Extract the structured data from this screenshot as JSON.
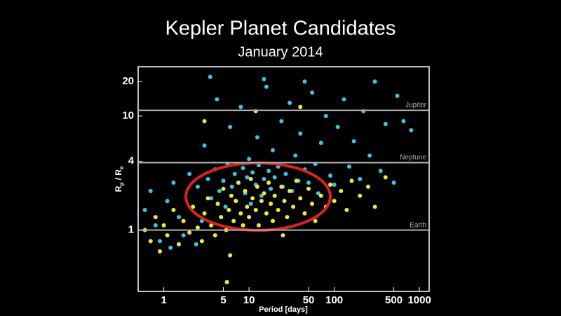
{
  "chart_data": {
    "type": "scatter",
    "title": "Kepler Planet Candidates",
    "subtitle": "January 2014",
    "xlabel": "Period [days]",
    "ylabel": [
      "R",
      "p",
      " / R",
      "e"
    ],
    "xscale": "log",
    "yscale": "log",
    "xlim": [
      0.5,
      1300
    ],
    "ylim": [
      0.29,
      27
    ],
    "xticks": [
      1,
      5,
      10,
      50,
      100,
      500,
      1000
    ],
    "yticks": [
      1,
      4,
      10,
      20
    ],
    "reference_lines": [
      {
        "value": 1,
        "label": "Earth"
      },
      {
        "value": 3.9,
        "label": "Neptune"
      },
      {
        "value": 11.2,
        "label": "Jupiter"
      }
    ],
    "series": [
      {
        "color": "#3cc3e6",
        "x": [
          0.6,
          0.7,
          0.8,
          0.9,
          1.1,
          1.3,
          1.5,
          1.7,
          2,
          2.2,
          2.5,
          2.8,
          3,
          3.3,
          3.6,
          4,
          4.2,
          4.5,
          5,
          5.3,
          5.6,
          6,
          6.3,
          6.8,
          7,
          7.5,
          8,
          8.5,
          9,
          9.5,
          10,
          10.5,
          11,
          12,
          12.5,
          13,
          14,
          15,
          16,
          17,
          18,
          19,
          20,
          22,
          24,
          25,
          27,
          30,
          32,
          35,
          38,
          40,
          45,
          50,
          55,
          60,
          65,
          70,
          80,
          90,
          100,
          110,
          130,
          150,
          170,
          200,
          220,
          260,
          300,
          350,
          400,
          500,
          550,
          650,
          800,
          3.5,
          15,
          45,
          1.2,
          2.4
        ],
        "values": [
          1.5,
          2.2,
          1.1,
          0.8,
          1.8,
          2.6,
          1.3,
          0.9,
          3.1,
          1.6,
          2.4,
          1.2,
          5.5,
          2.8,
          1.9,
          3.4,
          14,
          2.2,
          2.7,
          1.6,
          3.8,
          8,
          2.4,
          3.1,
          1.8,
          2.6,
          12,
          3.5,
          2.1,
          2.9,
          4.2,
          1.7,
          3.2,
          2.5,
          6.5,
          3.7,
          2.0,
          2.8,
          18,
          3.3,
          2.3,
          5,
          2.9,
          3.6,
          9,
          2.4,
          3.1,
          13,
          2.2,
          4.5,
          2.7,
          7,
          3.4,
          2.6,
          16,
          3.8,
          2.1,
          5.8,
          10,
          3.0,
          2.5,
          8,
          14,
          3.6,
          6,
          2.8,
          11,
          4.5,
          20,
          3.3,
          8.5,
          2.6,
          15,
          9,
          7.5,
          22,
          21,
          20,
          0.7,
          0.75
        ]
      },
      {
        "color": "#f2ea3a",
        "x": [
          0.6,
          0.7,
          0.8,
          0.9,
          1,
          1.1,
          1.3,
          1.5,
          1.7,
          2,
          2.2,
          2.5,
          2.8,
          3,
          3.3,
          3.6,
          4,
          4.3,
          4.7,
          5,
          5.4,
          5.8,
          6.2,
          6.6,
          7,
          7.5,
          8,
          8.5,
          9,
          9.5,
          10,
          10.5,
          11,
          12,
          12.5,
          13,
          14,
          15,
          16,
          17,
          18,
          19,
          20,
          22,
          24,
          26,
          28,
          30,
          33,
          36,
          40,
          45,
          50,
          55,
          60,
          70,
          80,
          90,
          100,
          120,
          140,
          160,
          200,
          250,
          300,
          400,
          3,
          12,
          40,
          6,
          25,
          5.5
        ],
        "values": [
          1.0,
          0.8,
          1.3,
          0.65,
          1.1,
          0.9,
          1.5,
          0.75,
          1.2,
          0.95,
          1.6,
          1.05,
          0.8,
          1.4,
          1.9,
          1.1,
          0.9,
          1.7,
          1.3,
          2.3,
          1.0,
          1.5,
          2.0,
          1.2,
          1.8,
          2.6,
          1.4,
          1.1,
          2.2,
          1.6,
          1.3,
          2.8,
          1.9,
          1.5,
          2.4,
          1.1,
          1.8,
          2.1,
          1.4,
          2.6,
          1.7,
          1.2,
          2.0,
          1.5,
          2.4,
          1.8,
          1.3,
          2.2,
          1.6,
          2.7,
          1.9,
          1.4,
          2.3,
          1.7,
          1.2,
          2.0,
          1.6,
          2.5,
          1.8,
          2.2,
          1.5,
          2.7,
          2.0,
          2.4,
          1.6,
          2.9,
          9,
          11,
          12,
          0.6,
          0.9,
          0.35
        ]
      }
    ]
  }
}
